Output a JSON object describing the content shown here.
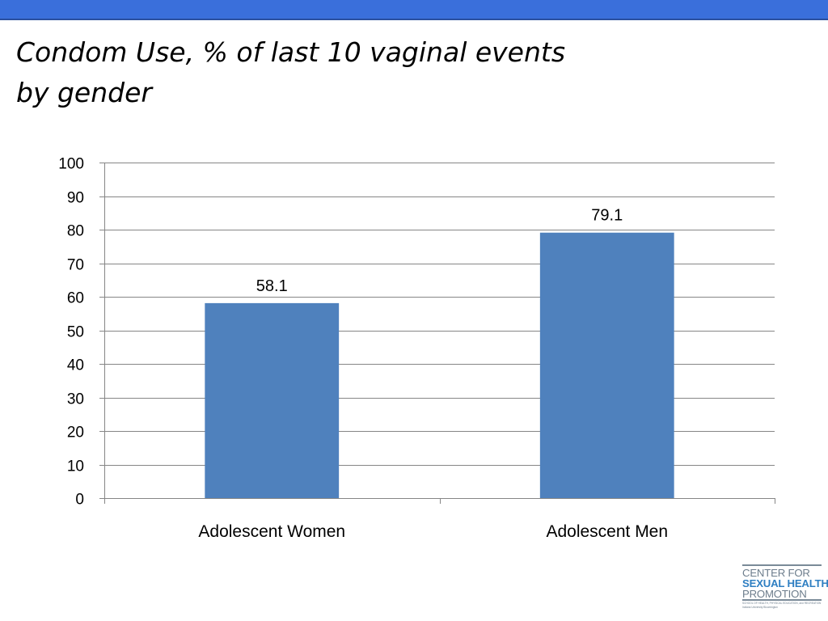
{
  "title_lines": [
    "Condom Use, % of last 10 vaginal events",
    "by gender"
  ],
  "colors": {
    "top_bar": "#3a6fdb",
    "bar_fill": "#4f81bd",
    "gridline": "#868686",
    "logo_blue": "#2f7fc2",
    "logo_gray": "#6d7d8c"
  },
  "logo": {
    "line1": "CENTER FOR",
    "line2": "SEXUAL HEALTH",
    "line3": "PROMOTION",
    "subtext1": "SCHOOL OF HEALTH, PHYSICAL EDUCATION, and RECREATION",
    "subtext2": "Indiana University Bloomington"
  },
  "chart_data": {
    "type": "bar",
    "categories": [
      "Adolescent Women",
      "Adolescent Men"
    ],
    "values": [
      58.1,
      79.1
    ],
    "data_labels": [
      "58.1",
      "79.1"
    ],
    "y_ticks": [
      "0",
      "10",
      "20",
      "30",
      "40",
      "50",
      "60",
      "70",
      "80",
      "90",
      "100"
    ],
    "ylim": [
      0,
      100
    ],
    "grid": true,
    "legend": "none"
  }
}
